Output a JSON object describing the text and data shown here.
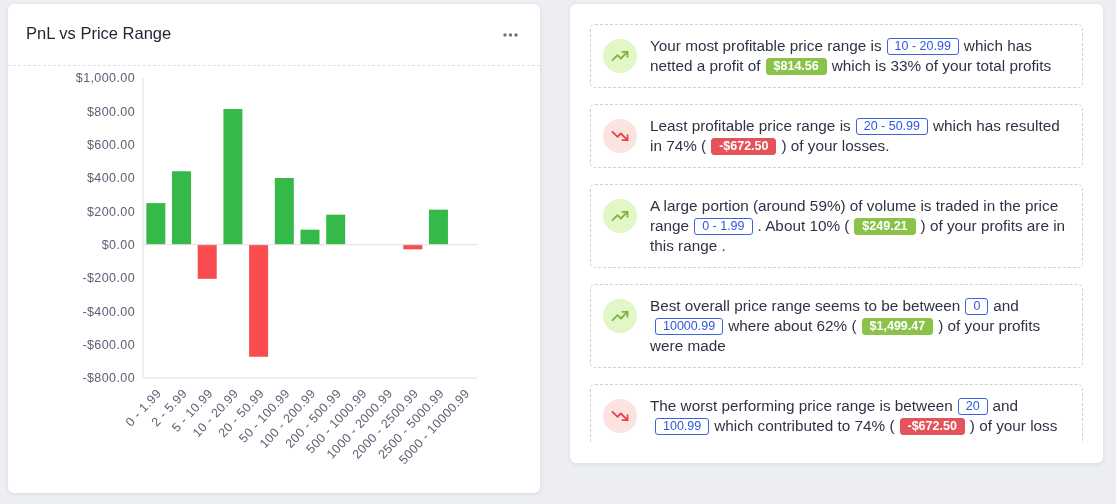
{
  "chart_data": [
    {
      "type": "bar",
      "title": "PnL vs Price Range",
      "categories": [
        "0 - 1.99",
        "2 - 5.99",
        "5 - 10.99",
        "10 - 20.99",
        "20 - 50.99",
        "50 - 100.99",
        "100 - 200.99",
        "200 - 500.99",
        "500 - 1000.99",
        "1000 - 2000.99",
        "2000 - 2500.99",
        "2500 - 5000.99",
        "5000 - 10000.99"
      ],
      "values": [
        249.21,
        440,
        -205,
        814.56,
        -672.5,
        400,
        90,
        180,
        null,
        null,
        -28,
        210,
        null
      ],
      "colors": [
        "#35b948",
        "#35b948",
        "#f84c4f",
        "#35b948",
        "#f84c4f",
        "#35b948",
        "#35b948",
        "#35b948",
        null,
        null,
        "#f84c4f",
        "#35b948",
        null
      ],
      "ylim": [
        -800,
        1000
      ],
      "yticks": [
        {
          "value": 1000,
          "label": "$1,000.00"
        },
        {
          "value": 800,
          "label": "$800.00"
        },
        {
          "value": 600,
          "label": "$600.00"
        },
        {
          "value": 400,
          "label": "$400.00"
        },
        {
          "value": 200,
          "label": "$200.00"
        },
        {
          "value": 0,
          "label": "$0.00"
        },
        {
          "value": -200,
          "label": "-$200.00"
        },
        {
          "value": -400,
          "label": "-$400.00"
        },
        {
          "value": -600,
          "label": "-$600.00"
        },
        {
          "value": -800,
          "label": "-$800.00"
        }
      ],
      "ref_lines": [
        {
          "axis": "y",
          "value": 0,
          "color": "#e0e0e0"
        }
      ]
    },
    {
      "type": "other",
      "annotations": [
        "Your most profitable price range is",
        {
          "text": "10 - 20.99"
        },
        "which has",
        "netted a profit of",
        {
          "text": "$814.56"
        },
        "which is 33% of your total profits"
      ]
    },
    {
      "type": "other",
      "annotations": [
        "Least profitable price range is",
        {
          "text": "20 - 50.99"
        },
        "which has resulted",
        "in 74% (",
        {
          "text": "-$672.50"
        },
        ") of your losses."
      ]
    },
    {
      "type": "other",
      "annotations": [
        "A large portion (around 59%) of volume is traded in the price",
        "range",
        {
          "text": "0 - 1.99"
        },
        ". About 10% (",
        {
          "text": "$249.21"
        },
        ") of your profits are in",
        "this range ."
      ]
    },
    {
      "type": "other",
      "annotations": [
        "Best overall price range seems to be between",
        {
          "text": "0"
        },
        "and",
        {
          "text": "10000.99"
        },
        "where about 62% (",
        {
          "text": "$1,499.47"
        },
        ") of your profits",
        "were made"
      ]
    },
    {
      "type": "other",
      "annotations": [
        "The worst performing price range is between",
        {
          "text": "20"
        },
        "and",
        {
          "text": "100.99"
        },
        "which contributed to 74% (",
        {
          "text": "-$672.50"
        },
        ") of your loss"
      ]
    }
  ]
}
